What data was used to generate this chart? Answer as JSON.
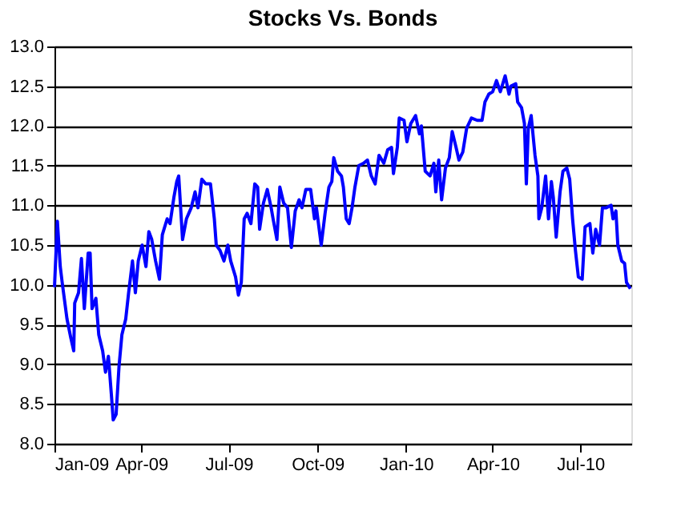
{
  "chart_data": {
    "type": "line",
    "title": "Stocks Vs. Bonds",
    "x": [
      "2009-01-01",
      "2009-01-04",
      "2009-01-07",
      "2009-01-09",
      "2009-01-14",
      "2009-01-18",
      "2009-01-21",
      "2009-01-22",
      "2009-01-26",
      "2009-01-29",
      "2009-02-01",
      "2009-02-05",
      "2009-02-07",
      "2009-02-09",
      "2009-02-13",
      "2009-02-16",
      "2009-02-20",
      "2009-02-23",
      "2009-02-26",
      "2009-03-01",
      "2009-03-03",
      "2009-03-06",
      "2009-03-09",
      "2009-03-12",
      "2009-03-16",
      "2009-03-19",
      "2009-03-23",
      "2009-03-26",
      "2009-03-29",
      "2009-04-02",
      "2009-04-06",
      "2009-04-09",
      "2009-04-12",
      "2009-04-16",
      "2009-04-20",
      "2009-04-23",
      "2009-04-28",
      "2009-05-01",
      "2009-05-05",
      "2009-05-08",
      "2009-05-10",
      "2009-05-14",
      "2009-05-18",
      "2009-05-23",
      "2009-05-27",
      "2009-05-30",
      "2009-06-03",
      "2009-06-07",
      "2009-06-12",
      "2009-06-16",
      "2009-06-18",
      "2009-06-22",
      "2009-06-26",
      "2009-06-30",
      "2009-07-03",
      "2009-07-08",
      "2009-07-11",
      "2009-07-14",
      "2009-07-17",
      "2009-07-20",
      "2009-07-24",
      "2009-07-28",
      "2009-07-31",
      "2009-08-02",
      "2009-08-06",
      "2009-08-10",
      "2009-08-14",
      "2009-08-16",
      "2009-08-20",
      "2009-08-23",
      "2009-08-27",
      "2009-08-31",
      "2009-09-04",
      "2009-09-08",
      "2009-09-12",
      "2009-09-15",
      "2009-09-19",
      "2009-09-24",
      "2009-09-28",
      "2009-09-30",
      "2009-10-05",
      "2009-10-09",
      "2009-10-13",
      "2009-10-16",
      "2009-10-18",
      "2009-10-22",
      "2009-10-26",
      "2009-10-28",
      "2009-10-31",
      "2009-11-03",
      "2009-11-06",
      "2009-11-09",
      "2009-11-13",
      "2009-11-18",
      "2009-11-22",
      "2009-11-26",
      "2009-11-30",
      "2009-12-04",
      "2009-12-09",
      "2009-12-13",
      "2009-12-17",
      "2009-12-19",
      "2009-12-23",
      "2009-12-25",
      "2009-12-30",
      "2010-01-02",
      "2010-01-06",
      "2010-01-11",
      "2010-01-15",
      "2010-01-17",
      "2010-01-21",
      "2010-01-26",
      "2010-01-30",
      "2010-02-01",
      "2010-02-04",
      "2010-02-07",
      "2010-02-11",
      "2010-02-15",
      "2010-02-18",
      "2010-02-22",
      "2010-02-25",
      "2010-03-01",
      "2010-03-05",
      "2010-03-10",
      "2010-03-16",
      "2010-03-21",
      "2010-03-24",
      "2010-03-28",
      "2010-04-01",
      "2010-04-05",
      "2010-04-09",
      "2010-04-14",
      "2010-04-18",
      "2010-04-20",
      "2010-04-25",
      "2010-04-27",
      "2010-05-01",
      "2010-05-04",
      "2010-05-06",
      "2010-05-08",
      "2010-05-11",
      "2010-05-15",
      "2010-05-18",
      "2010-05-19",
      "2010-05-22",
      "2010-05-26",
      "2010-05-29",
      "2010-06-01",
      "2010-06-03",
      "2010-06-06",
      "2010-06-10",
      "2010-06-13",
      "2010-06-17",
      "2010-06-20",
      "2010-06-23",
      "2010-06-26",
      "2010-06-29",
      "2010-07-03",
      "2010-07-06",
      "2010-07-11",
      "2010-07-14",
      "2010-07-17",
      "2010-07-21",
      "2010-07-24",
      "2010-07-28",
      "2010-08-02",
      "2010-08-04",
      "2010-08-07",
      "2010-08-09",
      "2010-08-13",
      "2010-08-16",
      "2010-08-18",
      "2010-08-22"
    ],
    "series": [
      {
        "color": "#0000ff",
        "values": [
          9.97,
          10.8,
          10.23,
          10.03,
          9.57,
          9.33,
          9.17,
          9.77,
          9.9,
          10.33,
          9.7,
          10.4,
          10.4,
          9.7,
          9.83,
          9.37,
          9.17,
          8.9,
          9.1,
          8.63,
          8.3,
          8.37,
          8.97,
          9.37,
          9.57,
          9.9,
          10.3,
          9.9,
          10.3,
          10.5,
          10.23,
          10.67,
          10.57,
          10.3,
          10.07,
          10.63,
          10.83,
          10.77,
          11.1,
          11.3,
          11.37,
          10.57,
          10.83,
          10.97,
          11.17,
          10.97,
          11.33,
          11.27,
          11.27,
          10.83,
          10.5,
          10.43,
          10.3,
          10.5,
          10.3,
          10.1,
          9.87,
          10.03,
          10.83,
          10.9,
          10.77,
          11.27,
          11.23,
          10.7,
          11.03,
          11.2,
          10.97,
          10.83,
          10.57,
          11.23,
          11.03,
          10.97,
          10.47,
          10.93,
          11.07,
          10.97,
          11.2,
          11.2,
          10.83,
          10.97,
          10.5,
          10.9,
          11.23,
          11.3,
          11.6,
          11.43,
          11.37,
          11.23,
          10.83,
          10.77,
          10.97,
          11.23,
          11.5,
          11.53,
          11.57,
          11.37,
          11.27,
          11.63,
          11.53,
          11.7,
          11.73,
          11.4,
          11.73,
          12.1,
          12.07,
          11.8,
          12.03,
          12.13,
          11.9,
          12.0,
          11.43,
          11.37,
          11.53,
          11.17,
          11.57,
          11.07,
          11.47,
          11.6,
          11.93,
          11.73,
          11.57,
          11.67,
          11.97,
          12.1,
          12.07,
          12.07,
          12.3,
          12.4,
          12.43,
          12.57,
          12.43,
          12.63,
          12.4,
          12.5,
          12.53,
          12.3,
          12.23,
          12.03,
          11.27,
          11.97,
          12.13,
          11.63,
          11.37,
          10.83,
          10.97,
          11.37,
          10.83,
          11.3,
          11.1,
          10.6,
          11.17,
          11.43,
          11.47,
          11.33,
          10.83,
          10.43,
          10.1,
          10.07,
          10.73,
          10.77,
          10.4,
          10.7,
          10.5,
          10.97,
          10.97,
          11.0,
          10.83,
          10.93,
          10.5,
          10.3,
          10.27,
          10.03,
          9.95
        ]
      }
    ],
    "xlim": [
      "2009-01-01",
      "2010-08-23"
    ],
    "xticks": [
      {
        "value": "2009-01-01",
        "label": "Jan-09"
      },
      {
        "value": "2009-04-01",
        "label": "Apr-09"
      },
      {
        "value": "2009-07-01",
        "label": "Jul-09"
      },
      {
        "value": "2009-10-01",
        "label": "Oct-09"
      },
      {
        "value": "2010-01-01",
        "label": "Jan-10"
      },
      {
        "value": "2010-04-01",
        "label": "Apr-10"
      },
      {
        "value": "2010-07-01",
        "label": "Jul-10"
      }
    ],
    "ylim": [
      8,
      13
    ],
    "yticks": [
      {
        "value": 8,
        "label": "8.0"
      },
      {
        "value": 8.5,
        "label": "8.5"
      },
      {
        "value": 9,
        "label": "9.0"
      },
      {
        "value": 9.5,
        "label": "9.5"
      },
      {
        "value": 10,
        "label": "10.0"
      },
      {
        "value": 10.5,
        "label": "10.5"
      },
      {
        "value": 11,
        "label": "11.0"
      },
      {
        "value": 11.5,
        "label": "11.5"
      },
      {
        "value": 12,
        "label": "12.0"
      },
      {
        "value": 12.5,
        "label": "12.5"
      },
      {
        "value": 13,
        "label": "13.0"
      }
    ],
    "grid": "y",
    "marker": "none",
    "line_style": "solid",
    "legend": false
  }
}
